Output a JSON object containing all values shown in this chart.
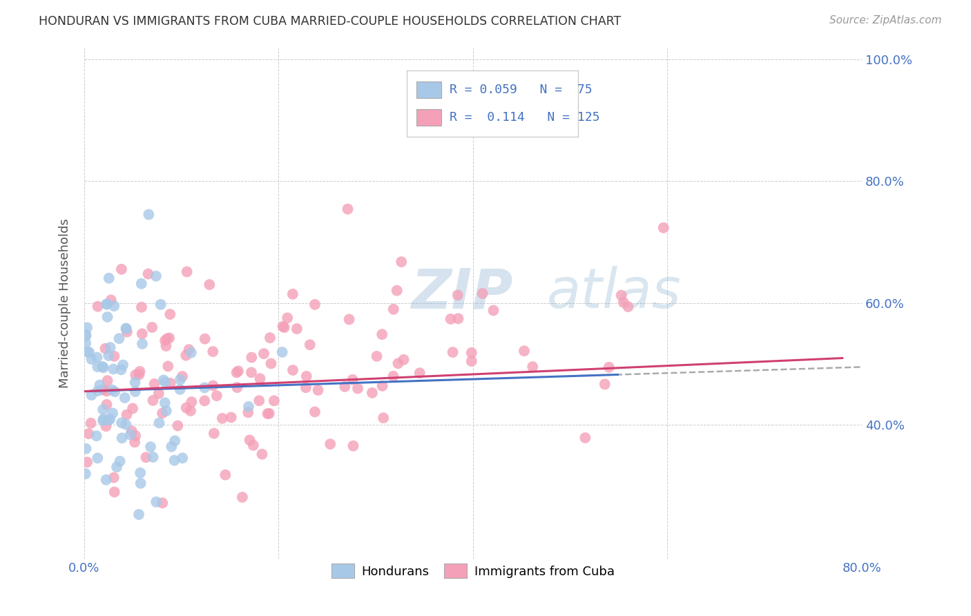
{
  "title": "HONDURAN VS IMMIGRANTS FROM CUBA MARRIED-COUPLE HOUSEHOLDS CORRELATION CHART",
  "source": "Source: ZipAtlas.com",
  "ylabel": "Married-couple Households",
  "R_hondurans": 0.059,
  "N_hondurans": 75,
  "R_cuba": 0.114,
  "N_cuba": 125,
  "xlim": [
    0.0,
    0.8
  ],
  "ylim": [
    0.18,
    1.02
  ],
  "ytick_vals": [
    0.4,
    0.6,
    0.8,
    1.0
  ],
  "ytick_labels": [
    "40.0%",
    "60.0%",
    "80.0%",
    "100.0%"
  ],
  "xtick_vals": [
    0.0,
    0.2,
    0.4,
    0.6,
    0.8
  ],
  "xtick_labels": [
    "0.0%",
    "",
    "",
    "",
    "80.0%"
  ],
  "color_hondurans": "#a8c8e8",
  "color_cuba": "#f4a0b8",
  "line_color_hondurans": "#4472c4",
  "line_color_cuba": "#d04070",
  "line_color_dash": "#aaaaaa",
  "watermark_color": "#d0dde8",
  "background_color": "#ffffff",
  "grid_color": "#cccccc",
  "legend_hondurans": "Hondurans",
  "legend_cuba": "Immigrants from Cuba",
  "title_color": "#333333",
  "source_color": "#999999",
  "tick_color": "#4472c4",
  "ylabel_color": "#555555"
}
